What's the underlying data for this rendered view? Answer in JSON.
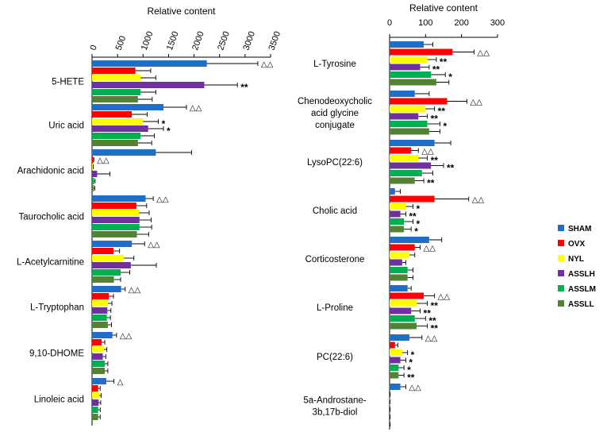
{
  "colors": {
    "SHAM": "#1f6fc9",
    "OVX": "#ff0000",
    "NYL": "#ffff00",
    "ASSLH": "#7030a0",
    "ASSLM": "#00b050",
    "ASSLL": "#548235"
  },
  "legend": [
    "SHAM",
    "OVX",
    "NYL",
    "ASSLH",
    "ASSLM",
    "ASSLL"
  ],
  "chart_data": [
    {
      "type": "bar",
      "orientation": "horizontal",
      "title": "",
      "xlabel": "Relative content",
      "xlim": [
        0,
        3500
      ],
      "ticks": [
        0,
        500,
        1000,
        1500,
        2000,
        2500,
        3000,
        3500
      ],
      "tick_labels": [
        "0",
        "500",
        "1000",
        "1500",
        "2000",
        "2500",
        "3000",
        "3500"
      ],
      "categories": [
        "5-HETE",
        "Uric acid",
        "Arachidonic acid",
        "Taurocholic acid",
        "L-Acetylcarnitine",
        "L-Tryptophan",
        "9,10-DHOME",
        "Linoleic acid"
      ],
      "series": [
        {
          "name": "SHAM",
          "values": [
            2250,
            1400,
            1250,
            1050,
            780,
            570,
            400,
            280
          ],
          "errors": [
            1000,
            450,
            700,
            150,
            250,
            80,
            80,
            150
          ]
        },
        {
          "name": "OVX",
          "values": [
            850,
            780,
            25,
            870,
            420,
            330,
            190,
            120
          ],
          "errors": [
            300,
            300,
            10,
            200,
            120,
            90,
            60,
            40
          ]
        },
        {
          "name": "NYL",
          "values": [
            950,
            1000,
            15,
            920,
            620,
            310,
            230,
            140
          ],
          "errors": [
            300,
            300,
            8,
            200,
            200,
            80,
            60,
            40
          ]
        },
        {
          "name": "ASSLH",
          "values": [
            2200,
            1100,
            100,
            930,
            760,
            300,
            210,
            130
          ],
          "errors": [
            650,
            300,
            250,
            230,
            500,
            70,
            60,
            40
          ]
        },
        {
          "name": "ASSLM",
          "values": [
            950,
            950,
            40,
            930,
            560,
            290,
            250,
            120
          ],
          "errors": [
            300,
            270,
            20,
            240,
            180,
            70,
            60,
            40
          ]
        },
        {
          "name": "ASSLL",
          "values": [
            900,
            900,
            35,
            880,
            430,
            310,
            250,
            120
          ],
          "errors": [
            280,
            270,
            20,
            230,
            130,
            70,
            60,
            40
          ]
        }
      ],
      "annotations": [
        {
          "category": "5-HETE",
          "series": "SHAM",
          "text": "△△"
        },
        {
          "category": "5-HETE",
          "series": "ASSLH",
          "text": "**"
        },
        {
          "category": "Uric acid",
          "series": "SHAM",
          "text": "△△"
        },
        {
          "category": "Uric acid",
          "series": "NYL",
          "text": "*"
        },
        {
          "category": "Uric acid",
          "series": "ASSLH",
          "text": "*"
        },
        {
          "category": "Arachidonic acid",
          "series": "OVX",
          "text": "△△"
        },
        {
          "category": "Taurocholic acid",
          "series": "SHAM",
          "text": "△△"
        },
        {
          "category": "L-Acetylcarnitine",
          "series": "SHAM",
          "text": "△△"
        },
        {
          "category": "L-Tryptophan",
          "series": "SHAM",
          "text": "△△"
        },
        {
          "category": "9,10-DHOME",
          "series": "SHAM",
          "text": "△△"
        },
        {
          "category": "Linoleic acid",
          "series": "SHAM",
          "text": "△"
        }
      ]
    },
    {
      "type": "bar",
      "orientation": "horizontal",
      "title": "",
      "xlabel": "Relative content",
      "xlim": [
        0,
        300
      ],
      "ticks": [
        0,
        100,
        200,
        300
      ],
      "tick_labels": [
        "0",
        "100",
        "200",
        "300"
      ],
      "categories": [
        "L-Tyrosine",
        "Chenodeoxycholic acid glycine conjugate",
        "LysoPC(22:6)",
        "Cholic acid",
        "Corticosterone",
        "L-Proline",
        "PC(22:6)",
        "5a-Androstane-3b,17b-diol"
      ],
      "category_lines": [
        [
          "L-Tyrosine"
        ],
        [
          "Chenodeoxycholic",
          "acid glycine",
          "conjugate"
        ],
        [
          "LysoPC(22:6)"
        ],
        [
          "Cholic acid"
        ],
        [
          "Corticosterone"
        ],
        [
          "L-Proline"
        ],
        [
          "PC(22:6)"
        ],
        [
          "5a-Androstane-",
          "3b,17b-diol"
        ]
      ],
      "series": [
        {
          "name": "SHAM",
          "values": [
            95,
            70,
            125,
            15,
            110,
            50,
            55,
            30
          ],
          "errors": [
            25,
            40,
            45,
            15,
            35,
            10,
            35,
            15
          ]
        },
        {
          "name": "OVX",
          "values": [
            175,
            160,
            60,
            125,
            70,
            95,
            15,
            1
          ],
          "errors": [
            60,
            55,
            20,
            95,
            15,
            30,
            8,
            0.5
          ]
        },
        {
          "name": "NYL",
          "values": [
            105,
            100,
            80,
            45,
            55,
            75,
            35,
            1
          ],
          "errors": [
            25,
            25,
            25,
            20,
            15,
            30,
            15,
            0.5
          ]
        },
        {
          "name": "ASSLH",
          "values": [
            85,
            80,
            115,
            30,
            35,
            60,
            30,
            1
          ],
          "errors": [
            25,
            25,
            35,
            15,
            10,
            25,
            15,
            0.5
          ]
        },
        {
          "name": "ASSLM",
          "values": [
            115,
            105,
            90,
            40,
            50,
            70,
            25,
            1
          ],
          "errors": [
            40,
            35,
            30,
            25,
            15,
            30,
            15,
            0.5
          ]
        },
        {
          "name": "ASSLL",
          "values": [
            130,
            110,
            70,
            40,
            50,
            75,
            25,
            1
          ],
          "errors": [
            35,
            30,
            25,
            20,
            15,
            30,
            15,
            0.5
          ]
        }
      ],
      "annotations": [
        {
          "category": "L-Tyrosine",
          "series": "OVX",
          "text": "△△"
        },
        {
          "category": "L-Tyrosine",
          "series": "NYL",
          "text": "**"
        },
        {
          "category": "L-Tyrosine",
          "series": "ASSLH",
          "text": "**"
        },
        {
          "category": "L-Tyrosine",
          "series": "ASSLM",
          "text": "*"
        },
        {
          "category": "Chenodeoxycholic acid glycine conjugate",
          "series": "OVX",
          "text": "△△"
        },
        {
          "category": "Chenodeoxycholic acid glycine conjugate",
          "series": "NYL",
          "text": "**"
        },
        {
          "category": "Chenodeoxycholic acid glycine conjugate",
          "series": "ASSLH",
          "text": "**"
        },
        {
          "category": "Chenodeoxycholic acid glycine conjugate",
          "series": "ASSLM",
          "text": "*"
        },
        {
          "category": "LysoPC(22:6)",
          "series": "OVX",
          "text": "△△"
        },
        {
          "category": "LysoPC(22:6)",
          "series": "NYL",
          "text": "**"
        },
        {
          "category": "LysoPC(22:6)",
          "series": "ASSLH",
          "text": "**"
        },
        {
          "category": "LysoPC(22:6)",
          "series": "ASSLL",
          "text": "**"
        },
        {
          "category": "Cholic acid",
          "series": "OVX",
          "text": "△△"
        },
        {
          "category": "Cholic acid",
          "series": "NYL",
          "text": "*"
        },
        {
          "category": "Cholic acid",
          "series": "ASSLH",
          "text": "**"
        },
        {
          "category": "Cholic acid",
          "series": "ASSLM",
          "text": "*"
        },
        {
          "category": "Cholic acid",
          "series": "ASSLL",
          "text": "*"
        },
        {
          "category": "Corticosterone",
          "series": "OVX",
          "text": "△△"
        },
        {
          "category": "L-Proline",
          "series": "OVX",
          "text": "△△"
        },
        {
          "category": "L-Proline",
          "series": "NYL",
          "text": "**"
        },
        {
          "category": "L-Proline",
          "series": "ASSLH",
          "text": "**"
        },
        {
          "category": "L-Proline",
          "series": "ASSLM",
          "text": "**"
        },
        {
          "category": "L-Proline",
          "series": "ASSLL",
          "text": "**"
        },
        {
          "category": "PC(22:6)",
          "series": "SHAM",
          "text": "△△"
        },
        {
          "category": "PC(22:6)",
          "series": "NYL",
          "text": "*"
        },
        {
          "category": "PC(22:6)",
          "series": "ASSLH",
          "text": "*"
        },
        {
          "category": "PC(22:6)",
          "series": "ASSLM",
          "text": "*"
        },
        {
          "category": "PC(22:6)",
          "series": "ASSLL",
          "text": "**"
        },
        {
          "category": "5a-Androstane-3b,17b-diol",
          "series": "SHAM",
          "text": "△△"
        }
      ]
    }
  ]
}
